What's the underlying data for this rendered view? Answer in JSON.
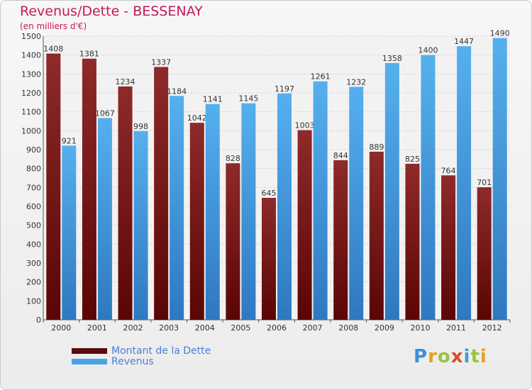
{
  "chart_data": {
    "type": "bar",
    "title": "Revenus/Dette - BESSENAY",
    "subtitle": "(en milliers d'€)",
    "categories": [
      "2000",
      "2001",
      "2002",
      "2003",
      "2004",
      "2005",
      "2006",
      "2007",
      "2008",
      "2009",
      "2010",
      "2011",
      "2012"
    ],
    "series": [
      {
        "name": "Montant de la Dette",
        "color": "#8b1a1a",
        "values": [
          1408,
          1381,
          1234,
          1337,
          1042,
          828,
          645,
          1003,
          844,
          889,
          825,
          764,
          701
        ],
        "labels": [
          "1408",
          "1381",
          "1234",
          "1337",
          "1042",
          "828",
          "645",
          "1003",
          "844",
          "889",
          "825",
          "764",
          "701"
        ]
      },
      {
        "name": "Revenus",
        "color": "#4aa3e8",
        "values": [
          921,
          1067,
          998,
          1184,
          1141,
          1145,
          1197,
          1261,
          1232,
          1358,
          1400,
          1447,
          1490
        ],
        "labels": [
          "921",
          "1067",
          "998",
          "1184",
          "1141",
          "1145",
          "1197",
          "1261",
          "1232",
          "1358",
          "1400",
          "1447",
          "1490"
        ]
      }
    ],
    "ylim": [
      0,
      1500
    ],
    "yticks": [
      0,
      100,
      200,
      300,
      400,
      500,
      600,
      700,
      800,
      900,
      1000,
      1100,
      1200,
      1300,
      1400,
      1500
    ],
    "grid": true,
    "legend_position": "bottom-left"
  },
  "logo": {
    "letters": [
      "P",
      "r",
      "o",
      "x",
      "i",
      "t",
      "i"
    ]
  }
}
